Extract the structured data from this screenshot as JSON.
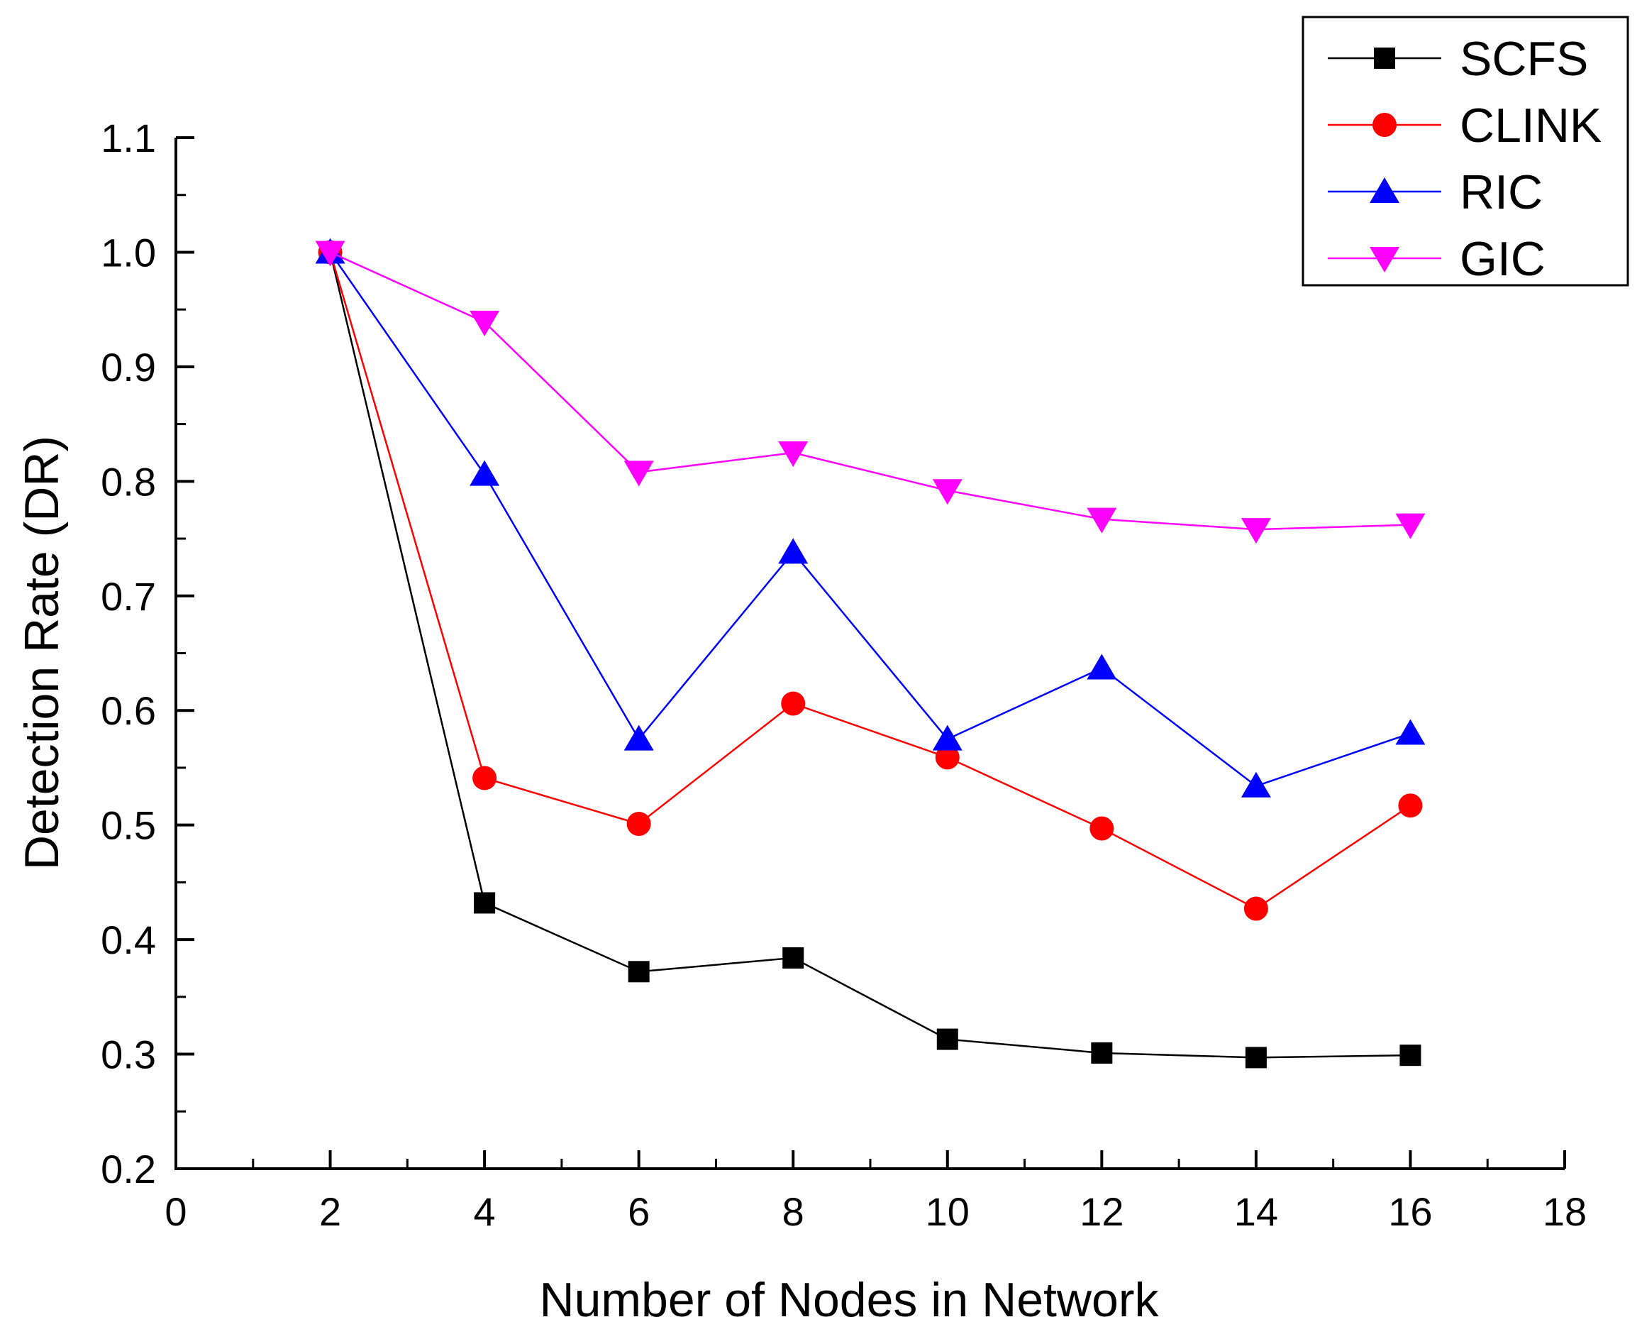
{
  "chart_data": {
    "type": "line",
    "title": "",
    "xlabel": "Number of Nodes in Network",
    "ylabel": "Detection Rate (DR)",
    "xlim": [
      0,
      18
    ],
    "ylim": [
      0.2,
      1.1
    ],
    "xticks": [
      0,
      2,
      4,
      6,
      8,
      10,
      12,
      14,
      16,
      18
    ],
    "yticks": [
      0.2,
      0.3,
      0.4,
      0.5,
      0.6,
      0.7,
      0.8,
      0.9,
      1.0,
      1.1
    ],
    "xtick_labels": [
      "0",
      "2",
      "4",
      "6",
      "8",
      "10",
      "12",
      "14",
      "16",
      "18"
    ],
    "ytick_labels": [
      "0.2",
      "0.3",
      "0.4",
      "0.5",
      "0.6",
      "0.7",
      "0.8",
      "0.9",
      "1.0",
      "1.1"
    ],
    "grid": false,
    "legend_position": "top-right",
    "x": [
      2,
      4,
      6,
      8,
      10,
      12,
      14,
      16
    ],
    "series": [
      {
        "name": "SCFS",
        "color": "#000000",
        "marker": "square",
        "values": [
          1.0,
          0.432,
          0.372,
          0.384,
          0.313,
          0.301,
          0.297,
          0.299
        ]
      },
      {
        "name": "CLINK",
        "color": "#ff0000",
        "marker": "circle",
        "values": [
          1.0,
          0.541,
          0.501,
          0.606,
          0.559,
          0.497,
          0.427,
          0.517
        ]
      },
      {
        "name": "RIC",
        "color": "#0000ff",
        "marker": "triangle-up",
        "values": [
          1.0,
          0.806,
          0.575,
          0.738,
          0.575,
          0.637,
          0.534,
          0.58
        ]
      },
      {
        "name": "GIC",
        "color": "#ff00ff",
        "marker": "triangle-down",
        "values": [
          1.0,
          0.939,
          0.808,
          0.825,
          0.792,
          0.767,
          0.758,
          0.762
        ]
      }
    ]
  }
}
